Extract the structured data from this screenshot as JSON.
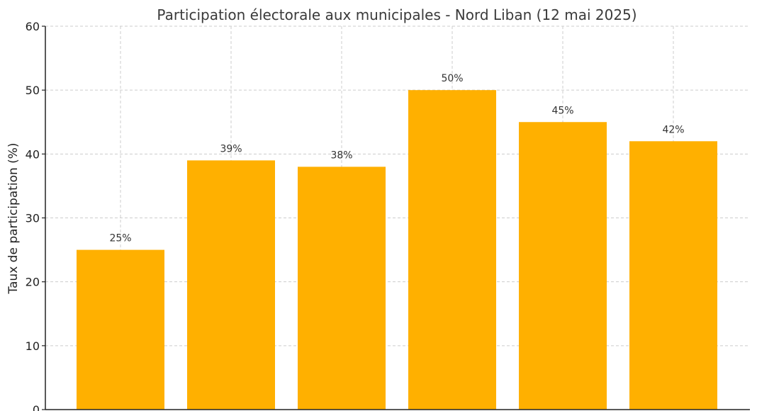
{
  "chart_data": {
    "type": "bar",
    "title": "Participation électorale aux municipales - Nord Liban (12 mai 2025)",
    "xlabel": "",
    "ylabel": "Taux de participation (%)",
    "ylim": [
      0,
      60
    ],
    "yticks": [
      "0",
      "10",
      "20",
      "30",
      "40",
      "50",
      "60"
    ],
    "categories": [
      "",
      "",
      "",
      "",
      "",
      ""
    ],
    "values": [
      25,
      39,
      38,
      50,
      45,
      42
    ],
    "data_labels": [
      "25%",
      "39%",
      "38%",
      "50%",
      "45%",
      "42%"
    ],
    "grid": true,
    "bar_color": "#FFB000"
  }
}
